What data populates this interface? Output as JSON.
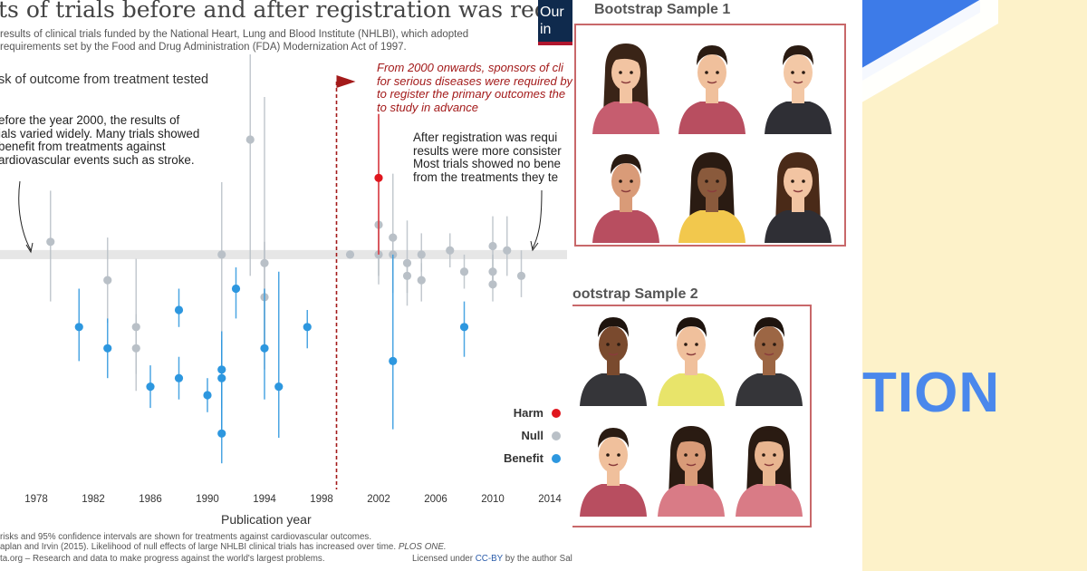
{
  "chart": {
    "title": "ts of trials before and after registration was required",
    "subtitle_lines": [
      "results of clinical trials funded by the National Heart, Lung and Blood Institute (NHLBI), which adopted",
      "requirements set by the Food and Drug Administration (FDA) Modernization Act of 1997."
    ],
    "logo_lines": [
      "Our",
      "in"
    ],
    "y_axis_title": "sk of outcome from treatment tested",
    "annotation_before": [
      "efore the year 2000, the results of",
      "ials varied widely. Many trials showed",
      "benefit from treatments against",
      "ardiovascular events such as stroke."
    ],
    "annotation_after": [
      "After registration was requi",
      "results were more consister",
      "Most trials showed no bene",
      "from the treatments they te"
    ],
    "annotation_policy": [
      "From 2000 onwards, sponsors of cli",
      "for serious diseases were required by",
      "to register the primary outcomes the",
      "to study in advance"
    ],
    "x_axis_title": "Publication year",
    "legend": {
      "harm": "Harm",
      "null": "Null",
      "benefit": "Benefit"
    },
    "footer_lines": [
      "risks and 95% confidence intervals are shown for treatments against cardiovascular outcomes.",
      "aplan and Irvin (2015). Likelihood of null effects of large NHLBI clinical trials has increased over time. ",
      "ta.org – Research and data to make progress against the world's largest problems."
    ],
    "footer_journal": "PLOS ONE.",
    "license_prefix": "Licensed under ",
    "license_link": "CC-BY",
    "license_suffix": " by the author Sal",
    "colors": {
      "harm": "#e0161e",
      "null": "#b9c0c7",
      "benefit": "#2d97df",
      "policy_line": "#a31a1a"
    }
  },
  "chart_data": {
    "type": "scatter",
    "xlabel": "Publication year",
    "ylabel": "sk of outcome from treatment tested",
    "x_ticks": [
      1978,
      1982,
      1986,
      1990,
      1994,
      1998,
      2002,
      2006,
      2010,
      2014
    ],
    "xlim": [
      1974,
      2015
    ],
    "ylim": [
      0,
      1
    ],
    "reference_band_y": 0.53,
    "policy_year": 2000,
    "points": [
      {
        "x": 1979,
        "y": 0.56,
        "lo": 0.42,
        "hi": 0.68,
        "cat": "null"
      },
      {
        "x": 1981,
        "y": 0.36,
        "lo": 0.28,
        "hi": 0.45,
        "cat": "benefit"
      },
      {
        "x": 1983,
        "y": 0.47,
        "lo": 0.37,
        "hi": 0.57,
        "cat": "null"
      },
      {
        "x": 1983,
        "y": 0.31,
        "lo": 0.24,
        "hi": 0.38,
        "cat": "benefit"
      },
      {
        "x": 1985,
        "y": 0.36,
        "lo": 0.25,
        "hi": 0.52,
        "cat": "null"
      },
      {
        "x": 1985,
        "y": 0.31,
        "lo": 0.21,
        "hi": 0.39,
        "cat": "null"
      },
      {
        "x": 1986,
        "y": 0.22,
        "lo": 0.17,
        "hi": 0.27,
        "cat": "benefit"
      },
      {
        "x": 1988,
        "y": 0.4,
        "lo": 0.36,
        "hi": 0.45,
        "cat": "benefit"
      },
      {
        "x": 1988,
        "y": 0.24,
        "lo": 0.19,
        "hi": 0.29,
        "cat": "benefit"
      },
      {
        "x": 1990,
        "y": 0.2,
        "lo": 0.16,
        "hi": 0.24,
        "cat": "benefit"
      },
      {
        "x": 1991,
        "y": 0.53,
        "lo": 0.18,
        "hi": 0.7,
        "cat": "null"
      },
      {
        "x": 1991,
        "y": 0.26,
        "lo": 0.17,
        "hi": 0.35,
        "cat": "benefit"
      },
      {
        "x": 1991,
        "y": 0.24,
        "lo": 0.12,
        "hi": 0.33,
        "cat": "benefit"
      },
      {
        "x": 1991,
        "y": 0.11,
        "lo": 0.04,
        "hi": 0.19,
        "cat": "benefit"
      },
      {
        "x": 1992,
        "y": 0.45,
        "lo": 0.38,
        "hi": 0.5,
        "cat": "benefit"
      },
      {
        "x": 1993,
        "y": 0.8,
        "lo": 0.48,
        "hi": 1.0,
        "cat": "null"
      },
      {
        "x": 1994,
        "y": 0.51,
        "lo": 0.31,
        "hi": 0.9,
        "cat": "null"
      },
      {
        "x": 1994,
        "y": 0.43,
        "lo": 0.26,
        "hi": 0.56,
        "cat": "null"
      },
      {
        "x": 1994,
        "y": 0.31,
        "lo": 0.19,
        "hi": 0.45,
        "cat": "benefit"
      },
      {
        "x": 1995,
        "y": 0.22,
        "lo": 0.1,
        "hi": 0.49,
        "cat": "benefit"
      },
      {
        "x": 1997,
        "y": 0.36,
        "lo": 0.31,
        "hi": 0.4,
        "cat": "benefit"
      },
      {
        "x": 2000,
        "y": 0.53,
        "lo": 0.53,
        "hi": 0.53,
        "cat": "null"
      },
      {
        "x": 2002,
        "y": 0.6,
        "lo": 0.48,
        "hi": 0.86,
        "cat": "null"
      },
      {
        "x": 2002,
        "y": 0.53,
        "lo": 0.46,
        "hi": 0.6,
        "cat": "null"
      },
      {
        "x": 2002,
        "y": 0.71,
        "lo": 0.53,
        "hi": 0.86,
        "cat": "harm"
      },
      {
        "x": 2003,
        "y": 0.57,
        "lo": 0.44,
        "hi": 0.72,
        "cat": "null"
      },
      {
        "x": 2003,
        "y": 0.53,
        "lo": 0.49,
        "hi": 0.57,
        "cat": "null"
      },
      {
        "x": 2003,
        "y": 0.28,
        "lo": 0.12,
        "hi": 0.53,
        "cat": "benefit"
      },
      {
        "x": 2004,
        "y": 0.51,
        "lo": 0.41,
        "hi": 0.61,
        "cat": "null"
      },
      {
        "x": 2004,
        "y": 0.48,
        "lo": 0.44,
        "hi": 0.51,
        "cat": "null"
      },
      {
        "x": 2005,
        "y": 0.53,
        "lo": 0.49,
        "hi": 0.58,
        "cat": "null"
      },
      {
        "x": 2005,
        "y": 0.47,
        "lo": 0.42,
        "hi": 0.51,
        "cat": "null"
      },
      {
        "x": 2007,
        "y": 0.54,
        "lo": 0.5,
        "hi": 0.58,
        "cat": "null"
      },
      {
        "x": 2008,
        "y": 0.49,
        "lo": 0.45,
        "hi": 0.53,
        "cat": "null"
      },
      {
        "x": 2008,
        "y": 0.36,
        "lo": 0.29,
        "hi": 0.42,
        "cat": "benefit"
      },
      {
        "x": 2010,
        "y": 0.55,
        "lo": 0.47,
        "hi": 0.62,
        "cat": "null"
      },
      {
        "x": 2010,
        "y": 0.49,
        "lo": 0.45,
        "hi": 0.53,
        "cat": "null"
      },
      {
        "x": 2010,
        "y": 0.46,
        "lo": 0.42,
        "hi": 0.5,
        "cat": "null"
      },
      {
        "x": 2011,
        "y": 0.54,
        "lo": 0.48,
        "hi": 0.62,
        "cat": "null"
      },
      {
        "x": 2012,
        "y": 0.48,
        "lo": 0.43,
        "hi": 0.54,
        "cat": "null"
      }
    ]
  },
  "bootstrap": {
    "sample1_title": "Bootstrap Sample 1",
    "sample2_title": "ootstrap Sample 2",
    "sample1_avatars": [
      {
        "name": "woman-long-hair-avatar",
        "skin": "#f2c4a2",
        "hair": "#3a2417",
        "shirt": "#c65d6f",
        "female": true
      },
      {
        "name": "bearded-man-glasses-avatar",
        "skin": "#f0c09c",
        "hair": "#2a1b12",
        "shirt": "#b84e60",
        "female": false
      },
      {
        "name": "man-suit-avatar",
        "skin": "#f3c8a6",
        "hair": "#2a1b12",
        "shirt": "#2f2f35",
        "female": false
      },
      {
        "name": "bearded-man-avatar",
        "skin": "#d99b78",
        "hair": "#2a1b12",
        "shirt": "#b84e60",
        "female": false
      },
      {
        "name": "woman-curly-hair-avatar",
        "skin": "#8a5a3c",
        "hair": "#2a1b12",
        "shirt": "#f2c84d",
        "female": true
      },
      {
        "name": "woman-blazer-avatar",
        "skin": "#f2c4a2",
        "hair": "#4a2a18",
        "shirt": "#2f2f35",
        "female": true
      }
    ],
    "sample2_avatars": [
      {
        "name": "man-dark-skin-avatar",
        "skin": "#7a4a2e",
        "hair": "#1e140e",
        "shirt": "#353539",
        "female": false
      },
      {
        "name": "man-vest-avatar",
        "skin": "#f0c09c",
        "hair": "#1e140e",
        "shirt": "#e8e46a",
        "female": false
      },
      {
        "name": "man-avatar",
        "skin": "#9c6644",
        "hair": "#1e140e",
        "shirt": "#353539",
        "female": false
      },
      {
        "name": "bearded-man-glasses-avatar",
        "skin": "#f0c09c",
        "hair": "#2a1b12",
        "shirt": "#b84e60",
        "female": false
      },
      {
        "name": "woman-curly-hair-avatar",
        "skin": "#d99b78",
        "hair": "#2a1b12",
        "shirt": "#d97b86",
        "female": true
      },
      {
        "name": "woman-curly-hair-avatar",
        "skin": "#e8b590",
        "hair": "#2a1b12",
        "shirt": "#d97b86",
        "female": true
      }
    ]
  },
  "right": {
    "big_text": "TION",
    "colors": {
      "background": "#fdf2c9",
      "text": "#4a88ec"
    }
  }
}
